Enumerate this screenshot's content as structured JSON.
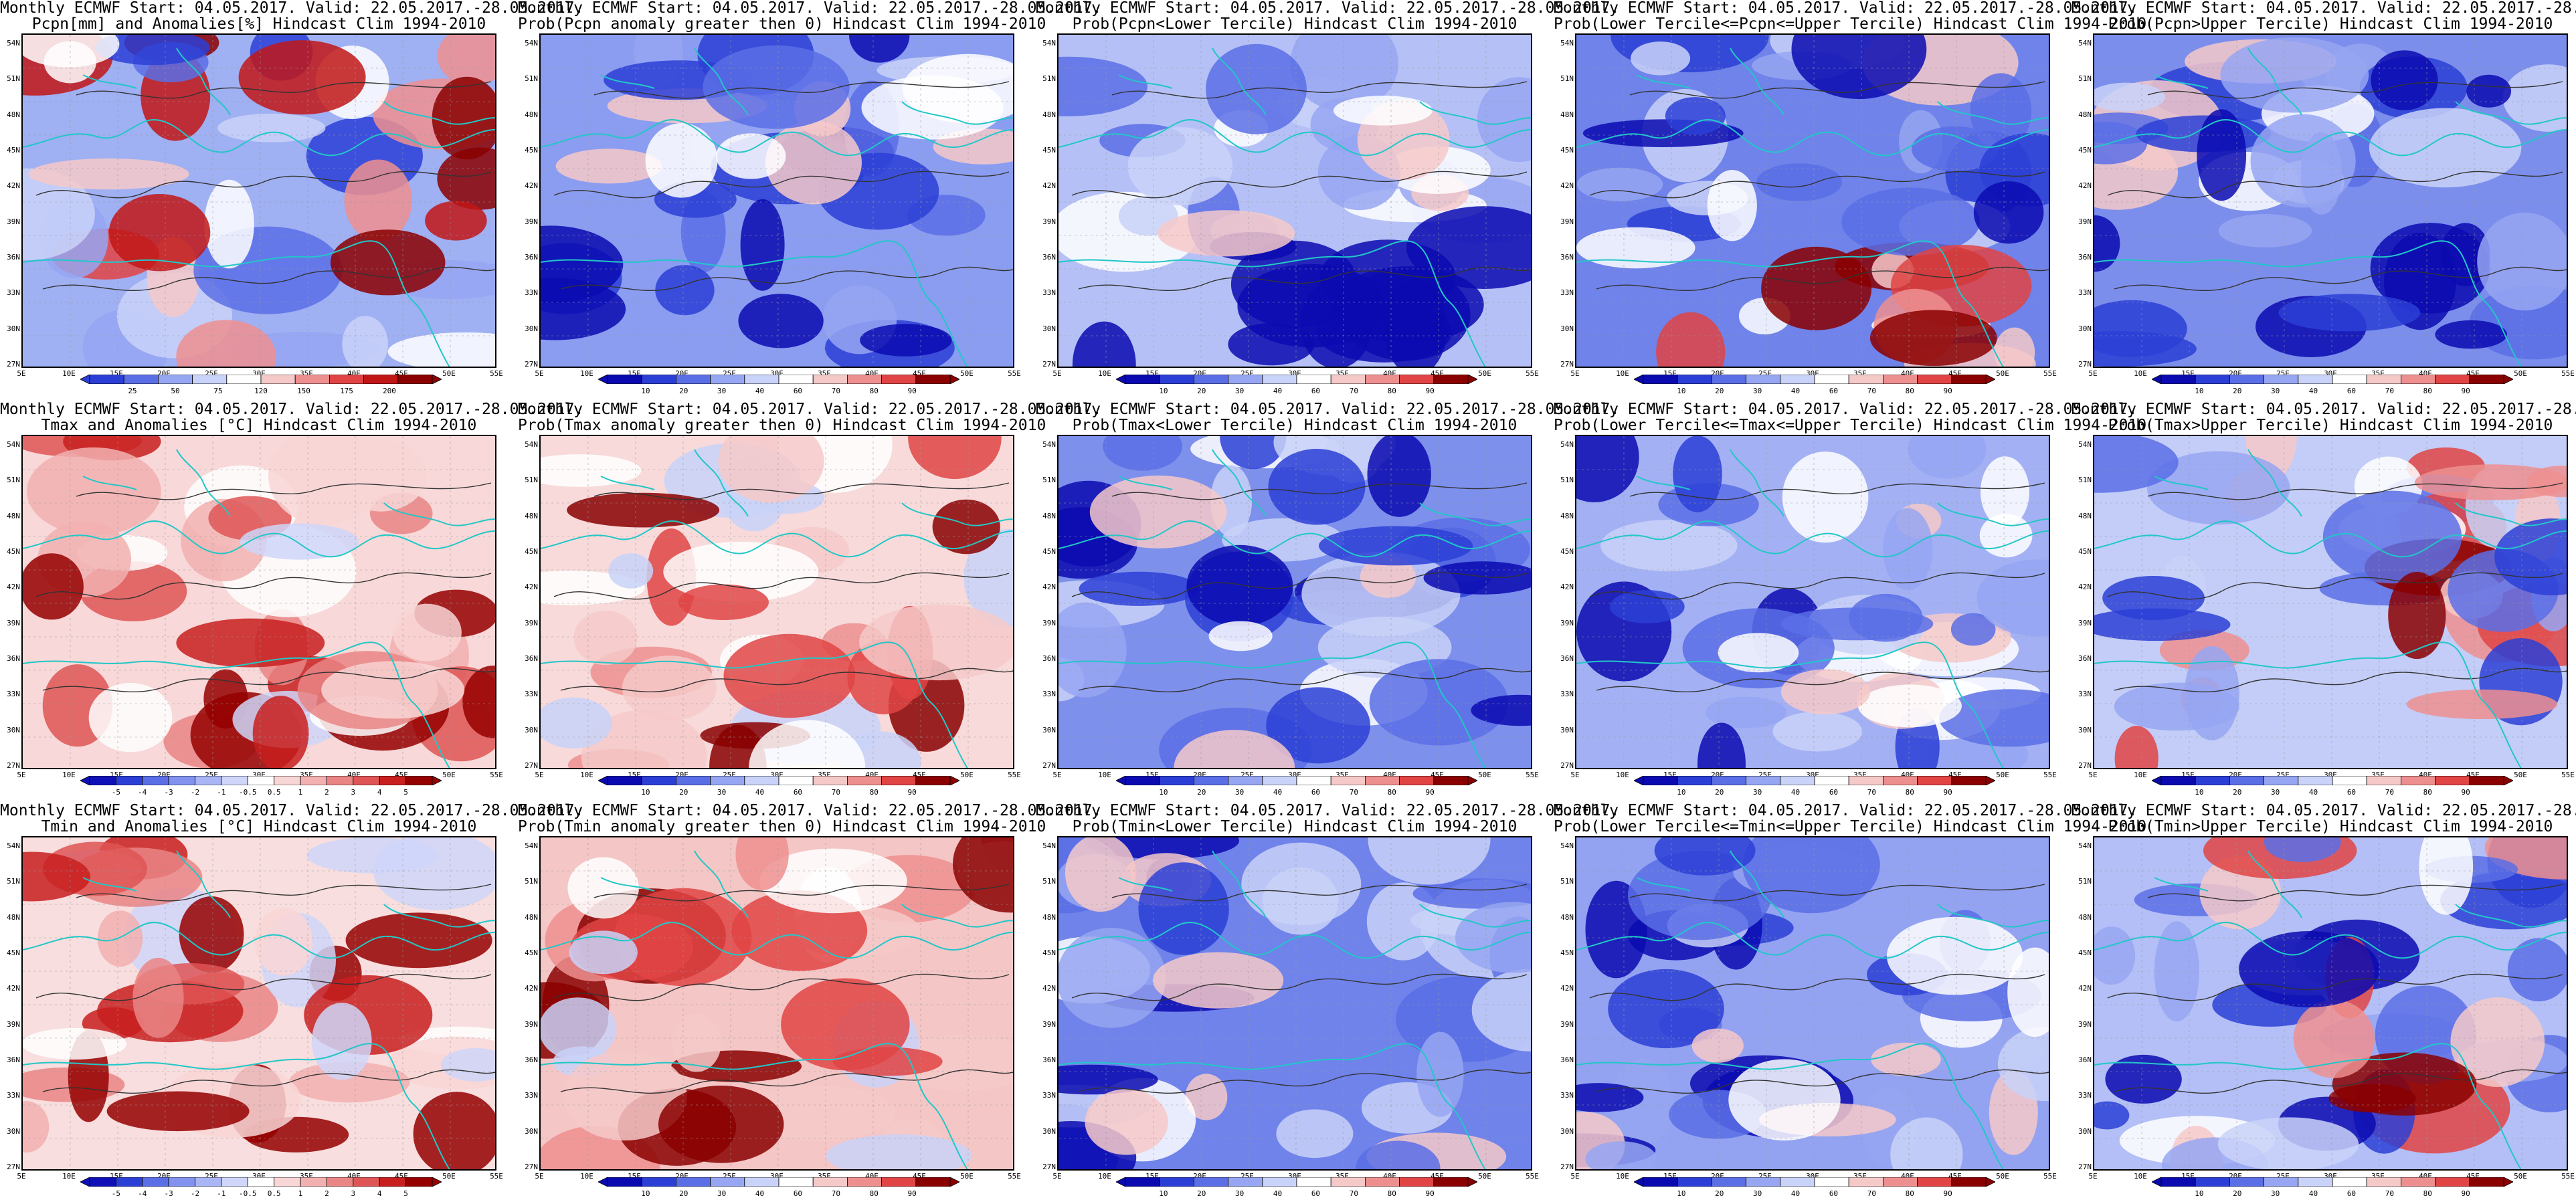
{
  "header_line": "Monthly ECMWF Start: 04.05.2017. Valid: 22.05.2017.-28.05.2017.",
  "lat_labels": [
    "54N",
    "51N",
    "48N",
    "45N",
    "42N",
    "39N",
    "36N",
    "33N",
    "30N",
    "27N"
  ],
  "lon_labels": [
    "5E",
    "10E",
    "15E",
    "20E",
    "25E",
    "30E",
    "35E",
    "40E",
    "45E",
    "50E",
    "55E"
  ],
  "scales": {
    "pcpn_anom": {
      "labels": [
        "25",
        "50",
        "75",
        "120",
        "150",
        "175",
        "200"
      ],
      "colors": [
        "#2b3fd6",
        "#5a6ee6",
        "#97a6f2",
        "#c9d2f8",
        "#ffffff",
        "#f6c9c9",
        "#ee8f8f",
        "#e14444",
        "#c11616",
        "#8a0000"
      ]
    },
    "temp_anom": {
      "labels": [
        "-5",
        "-4",
        "-3",
        "-2",
        "-1",
        "-0.5",
        "0.5",
        "1",
        "2",
        "3",
        "4",
        "5"
      ],
      "colors": [
        "#1010b8",
        "#2b3fd6",
        "#5a6ee6",
        "#8292ee",
        "#a9b5f4",
        "#cfd6f9",
        "#ffffff",
        "#f9d6d6",
        "#f2b0b0",
        "#ea8585",
        "#df5555",
        "#c81f1f",
        "#950000"
      ]
    },
    "prob": {
      "labels": [
        "10",
        "20",
        "30",
        "40",
        "60",
        "70",
        "80",
        "90"
      ],
      "colors": [
        "#0a0ab0",
        "#2b3fd6",
        "#5a6ee6",
        "#97a6f2",
        "#c9d2f8",
        "#ffffff",
        "#f6c9c9",
        "#ee8f8f",
        "#e14444",
        "#8a0000"
      ]
    }
  },
  "panels": [
    {
      "id": "pcpn-anomalies",
      "title2": "Pcpn[mm] and Anomalies[%] Hindcast Clim 1994-2010",
      "scale": "pcpn_anom",
      "style": "mix",
      "base": "#9fb0f3"
    },
    {
      "id": "prob-pcpn-anomaly-gt0",
      "title2": "Prob(Pcpn anomaly greater then 0) Hindcast Clim 1994-2010",
      "scale": "prob",
      "style": "coldsouth",
      "base": "#8b9df0"
    },
    {
      "id": "prob-pcpn-lower-tercile",
      "title2": "Prob(Pcpn<Lower Tercile) Hindcast Clim 1994-2010",
      "scale": "prob",
      "style": "deepsouth",
      "base": "#b5c1f6"
    },
    {
      "id": "prob-pcpn-middle-tercile",
      "title2": "Prob(Lower Tercile<=Pcpn<=Upper Tercile) Hindcast Clim 1994-2010",
      "scale": "prob",
      "style": "redsouth",
      "base": "#6f83ea"
    },
    {
      "id": "prob-pcpn-upper-tercile",
      "title2": "Prob(Pcpn>Upper Tercile) Hindcast Clim 1994-2010",
      "scale": "prob",
      "style": "coldsouth",
      "base": "#7c8eec"
    },
    {
      "id": "tmax-anomalies",
      "title2": "Tmax and Anomalies [°C] Hindcast Clim 1994-2010",
      "scale": "temp_anom",
      "style": "warm",
      "base": "#f8d8d8"
    },
    {
      "id": "prob-tmax-anomaly-gt0",
      "title2": "Prob(Tmax anomaly greater then 0) Hindcast Clim 1994-2010",
      "scale": "prob",
      "style": "warm",
      "base": "#f8dada"
    },
    {
      "id": "prob-tmax-lower-tercile",
      "title2": "Prob(Tmax<Lower Tercile) Hindcast Clim 1994-2010",
      "scale": "prob",
      "style": "cold",
      "base": "#7d90ec"
    },
    {
      "id": "prob-tmax-middle-tercile",
      "title2": "Prob(Lower Tercile<=Tmax<=Upper Tercile) Hindcast Clim 1994-2010",
      "scale": "prob",
      "style": "cold",
      "base": "#a3b1f4"
    },
    {
      "id": "prob-tmax-upper-tercile",
      "title2": "Prob(Tmax>Upper Tercile) Hindcast Clim 1994-2010",
      "scale": "prob",
      "style": "mix",
      "base": "#c3cdf8"
    },
    {
      "id": "tmin-anomalies",
      "title2": "Tmin and Anomalies [°C] Hindcast Clim 1994-2010",
      "scale": "temp_anom",
      "style": "warm",
      "base": "#f8dede"
    },
    {
      "id": "prob-tmin-anomaly-gt0",
      "title2": "Prob(Tmin anomaly greater then 0) Hindcast Clim 1994-2010",
      "scale": "prob",
      "style": "warm",
      "base": "#f4c6c6"
    },
    {
      "id": "prob-tmin-lower-tercile",
      "title2": "Prob(Tmin<Lower Tercile) Hindcast Clim 1994-2010",
      "scale": "prob",
      "style": "cold",
      "base": "#6f83ea"
    },
    {
      "id": "prob-tmin-middle-tercile",
      "title2": "Prob(Lower Tercile<=Tmin<=Upper Tercile) Hindcast Clim 1994-2010",
      "scale": "prob",
      "style": "cold",
      "base": "#93a3f2"
    },
    {
      "id": "prob-tmin-upper-tercile",
      "title2": "Prob(Tmin>Upper Tercile) Hindcast Clim 1994-2010",
      "scale": "prob",
      "style": "mix",
      "base": "#b3bff6"
    }
  ]
}
